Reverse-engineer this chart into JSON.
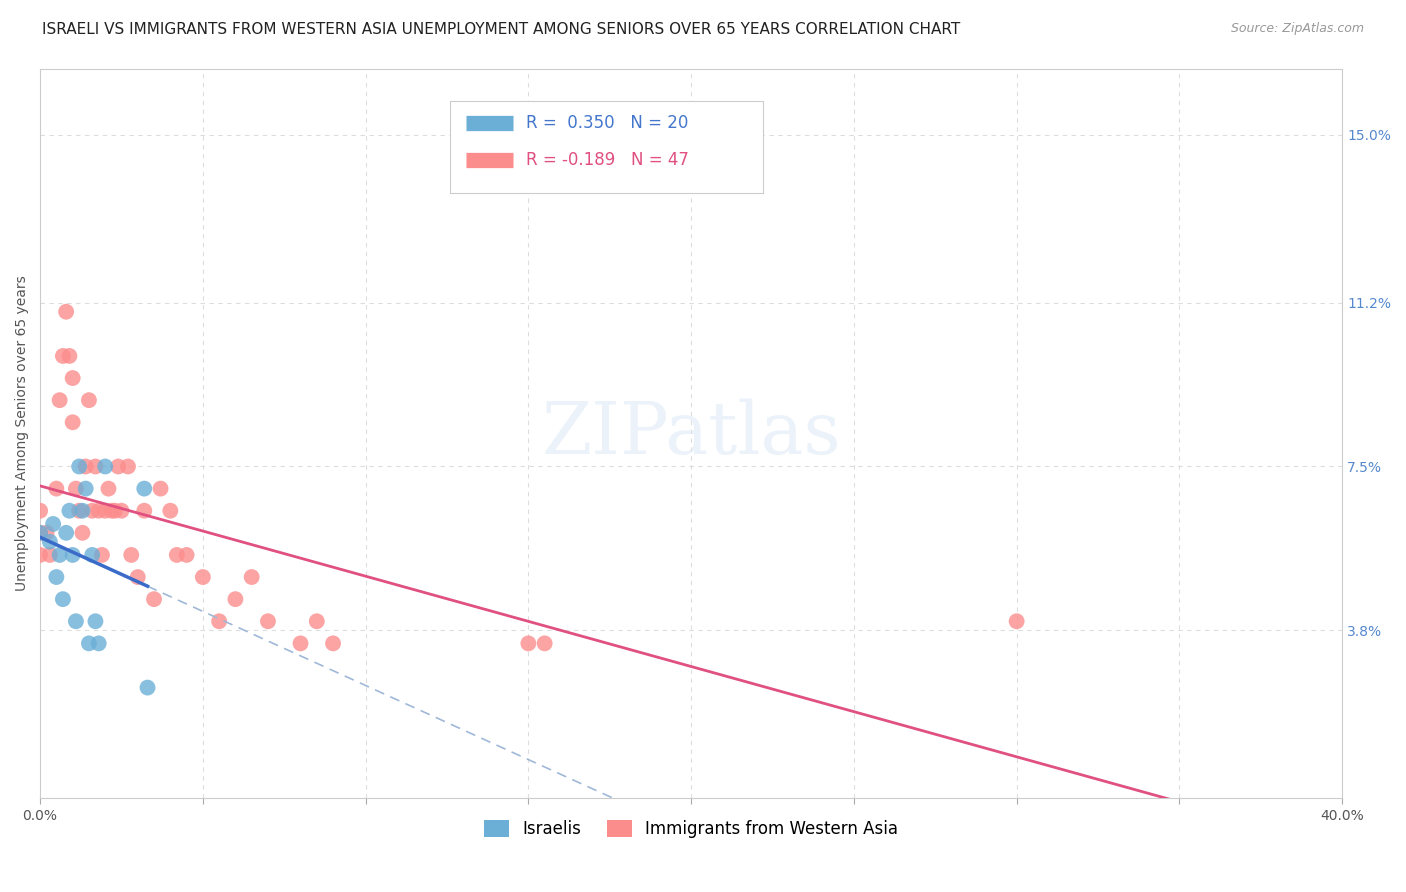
{
  "title": "ISRAELI VS IMMIGRANTS FROM WESTERN ASIA UNEMPLOYMENT AMONG SENIORS OVER 65 YEARS CORRELATION CHART",
  "source": "Source: ZipAtlas.com",
  "ylabel": "Unemployment Among Seniors over 65 years",
  "xlim": [
    0.0,
    0.4
  ],
  "ylim": [
    0.0,
    0.165
  ],
  "xtick_pos": [
    0.0,
    0.05,
    0.1,
    0.15,
    0.2,
    0.25,
    0.3,
    0.35,
    0.4
  ],
  "xticklabels": [
    "0.0%",
    "",
    "",
    "",
    "",
    "",
    "",
    "",
    "40.0%"
  ],
  "ytick_pos_right": [
    0.038,
    0.075,
    0.112,
    0.15
  ],
  "ytick_labels_right": [
    "3.8%",
    "7.5%",
    "11.2%",
    "15.0%"
  ],
  "grid_yticks": [
    0.038,
    0.075,
    0.112,
    0.15
  ],
  "grid_xticks": [
    0.05,
    0.1,
    0.15,
    0.2,
    0.25,
    0.3,
    0.35,
    0.4
  ],
  "israeli_color": "#6baed6",
  "immigrants_color": "#fc8d8d",
  "israeli_line_color": "#3a6bc9",
  "immigrants_line_color": "#e05080",
  "dashed_line_color": "#a0b8d8",
  "israeli_R": 0.35,
  "israeli_N": 20,
  "immigrants_R": -0.189,
  "immigrants_N": 47,
  "israeli_x": [
    0.0,
    0.003,
    0.004,
    0.005,
    0.006,
    0.007,
    0.008,
    0.009,
    0.01,
    0.011,
    0.012,
    0.013,
    0.014,
    0.015,
    0.016,
    0.017,
    0.018,
    0.02,
    0.032,
    0.033
  ],
  "israeli_y": [
    0.06,
    0.058,
    0.062,
    0.05,
    0.055,
    0.045,
    0.06,
    0.065,
    0.055,
    0.04,
    0.075,
    0.065,
    0.07,
    0.035,
    0.055,
    0.04,
    0.035,
    0.075,
    0.07,
    0.025
  ],
  "immigrants_x": [
    0.0,
    0.0,
    0.0,
    0.002,
    0.003,
    0.005,
    0.006,
    0.007,
    0.008,
    0.009,
    0.01,
    0.01,
    0.011,
    0.012,
    0.013,
    0.014,
    0.015,
    0.016,
    0.017,
    0.018,
    0.019,
    0.02,
    0.021,
    0.022,
    0.023,
    0.024,
    0.025,
    0.027,
    0.028,
    0.03,
    0.032,
    0.035,
    0.037,
    0.04,
    0.042,
    0.045,
    0.05,
    0.055,
    0.06,
    0.065,
    0.07,
    0.08,
    0.085,
    0.09,
    0.15,
    0.155,
    0.3
  ],
  "immigrants_y": [
    0.06,
    0.055,
    0.065,
    0.06,
    0.055,
    0.07,
    0.09,
    0.1,
    0.11,
    0.1,
    0.095,
    0.085,
    0.07,
    0.065,
    0.06,
    0.075,
    0.09,
    0.065,
    0.075,
    0.065,
    0.055,
    0.065,
    0.07,
    0.065,
    0.065,
    0.075,
    0.065,
    0.075,
    0.055,
    0.05,
    0.065,
    0.045,
    0.07,
    0.065,
    0.055,
    0.055,
    0.05,
    0.04,
    0.045,
    0.05,
    0.04,
    0.035,
    0.04,
    0.035,
    0.035,
    0.035,
    0.04
  ],
  "background_color": "#ffffff",
  "grid_color": "#dddddd",
  "title_fontsize": 11,
  "source_fontsize": 9,
  "axis_label_fontsize": 10,
  "tick_fontsize": 10,
  "legend_fontsize": 12,
  "watermark_text": "ZIPatlas",
  "legend_label1": "Israelis",
  "legend_label2": "Immigrants from Western Asia"
}
